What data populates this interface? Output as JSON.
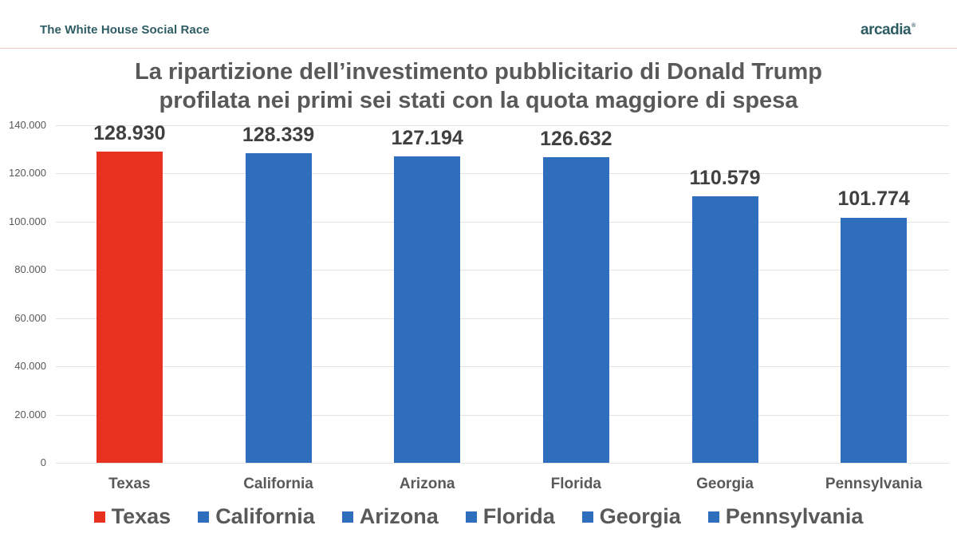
{
  "header": {
    "brand_title": "The White House Social Race",
    "logo": "arcadia",
    "logo_mark": "®"
  },
  "chart_data": {
    "type": "bar",
    "title": "La ripartizione dell’investimento pubblicitario di Donald Trump profilata nei primi sei stati con la quota maggiore di spesa",
    "title_lines": [
      "La ripartizione dell’investimento pubblicitario di Donald Trump",
      "profilata nei primi sei stati con la quota maggiore di spesa"
    ],
    "categories": [
      "Texas",
      "California",
      "Arizona",
      "Florida",
      "Georgia",
      "Pennsylvania"
    ],
    "values": [
      128930,
      128339,
      127194,
      126632,
      110579,
      101774
    ],
    "value_labels": [
      "128.930",
      "128.339",
      "127.194",
      "126.632",
      "110.579",
      "101.774"
    ],
    "colors": [
      "#e8321f",
      "#2f6ebc",
      "#2f6ebc",
      "#2f6ebc",
      "#2f6ebc",
      "#2f6ebc"
    ],
    "xlabel": "",
    "ylabel": "",
    "ylim": [
      0,
      140000
    ],
    "yticks": [
      0,
      20000,
      40000,
      60000,
      80000,
      100000,
      120000,
      140000
    ],
    "ytick_labels": [
      "0",
      "20.000",
      "40.000",
      "60.000",
      "80.000",
      "100.000",
      "120.000",
      "140.000"
    ],
    "grid": true,
    "legend_position": "bottom",
    "legend": [
      "Texas",
      "California",
      "Arizona",
      "Florida",
      "Georgia",
      "Pennsylvania"
    ]
  }
}
